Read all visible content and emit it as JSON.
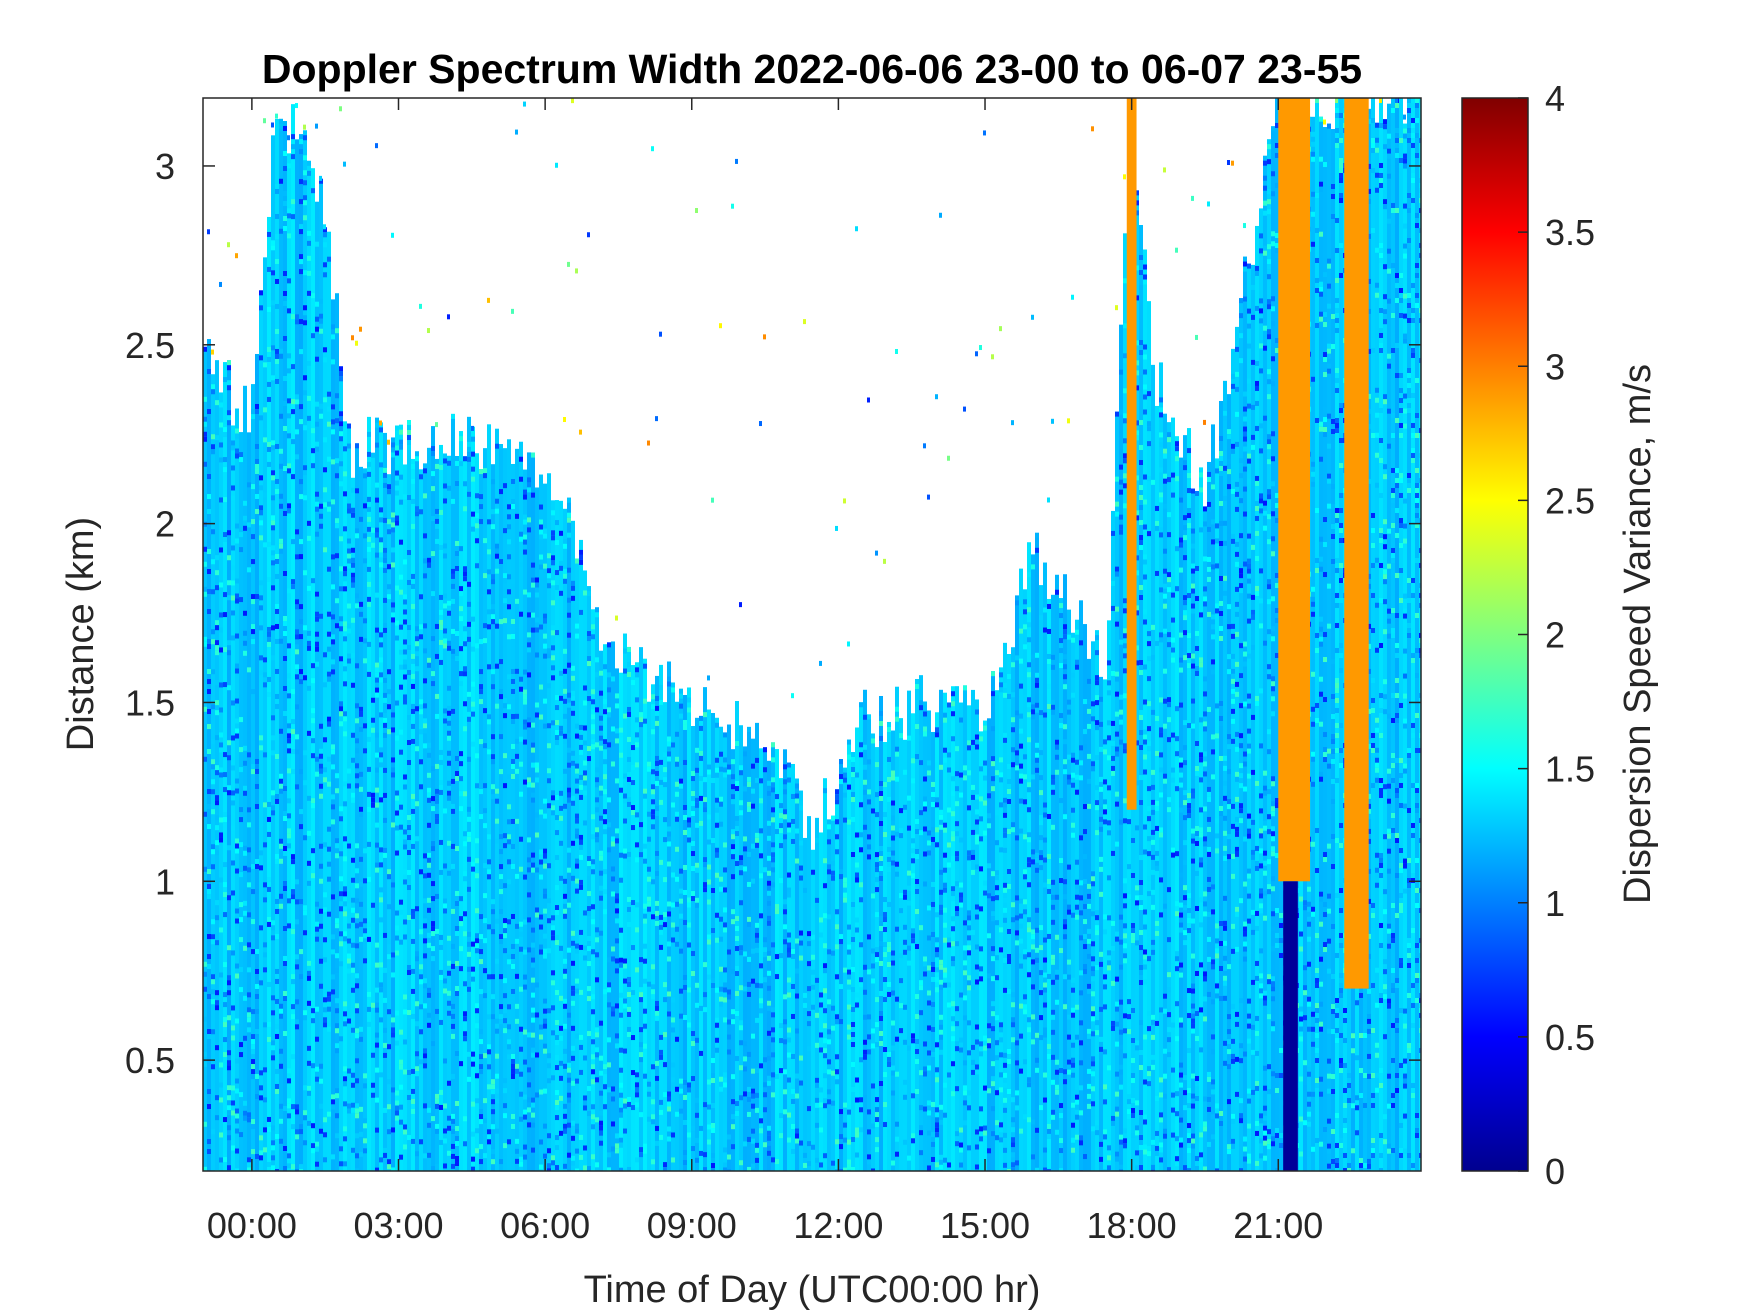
{
  "chart_data": {
    "type": "heatmap",
    "title": "Doppler Spectrum Width 2022-06-06 23-00 to 06-07 23-55",
    "xlabel": "Time of Day (UTC00:00 hr)",
    "ylabel": "Distance (km)",
    "colorbar_label": "Dispersion Speed Variance, m/s",
    "x_range_hours": [
      -1,
      23.92
    ],
    "x_ticks": [
      {
        "hour": 0,
        "label": "00:00"
      },
      {
        "hour": 3,
        "label": "03:00"
      },
      {
        "hour": 6,
        "label": "06:00"
      },
      {
        "hour": 9,
        "label": "09:00"
      },
      {
        "hour": 12,
        "label": "12:00"
      },
      {
        "hour": 15,
        "label": "15:00"
      },
      {
        "hour": 18,
        "label": "18:00"
      },
      {
        "hour": 21,
        "label": "21:00"
      }
    ],
    "ylim": [
      0.19,
      3.19
    ],
    "y_ticks": [
      {
        "value": 0.5,
        "label": "0.5"
      },
      {
        "value": 1,
        "label": "1"
      },
      {
        "value": 1.5,
        "label": "1.5"
      },
      {
        "value": 2,
        "label": "2"
      },
      {
        "value": 2.5,
        "label": "2.5"
      },
      {
        "value": 3,
        "label": "3"
      }
    ],
    "colorbar": {
      "range": [
        0,
        4
      ],
      "colormap": "jet",
      "ticks": [
        {
          "value": 0,
          "label": "0"
        },
        {
          "value": 0.5,
          "label": "0.5"
        },
        {
          "value": 1,
          "label": "1"
        },
        {
          "value": 1.5,
          "label": "1.5"
        },
        {
          "value": 2,
          "label": "2"
        },
        {
          "value": 2.5,
          "label": "2.5"
        },
        {
          "value": 3,
          "label": "3"
        },
        {
          "value": 3.5,
          "label": "3.5"
        },
        {
          "value": 4,
          "label": "4"
        }
      ]
    },
    "data_top_km_by_hour": [
      {
        "hour": -1.0,
        "top": 2.45
      },
      {
        "hour": 0.0,
        "top": 2.3
      },
      {
        "hour": 0.5,
        "top": 3.19
      },
      {
        "hour": 1.5,
        "top": 2.9
      },
      {
        "hour": 2.0,
        "top": 2.2
      },
      {
        "hour": 4.0,
        "top": 2.25
      },
      {
        "hour": 6.5,
        "top": 2.1
      },
      {
        "hour": 7.0,
        "top": 1.7
      },
      {
        "hour": 8.0,
        "top": 1.6
      },
      {
        "hour": 9.0,
        "top": 1.5
      },
      {
        "hour": 10.5,
        "top": 1.4
      },
      {
        "hour": 11.5,
        "top": 1.15
      },
      {
        "hour": 12.5,
        "top": 1.45
      },
      {
        "hour": 14.0,
        "top": 1.5
      },
      {
        "hour": 15.0,
        "top": 1.5
      },
      {
        "hour": 16.0,
        "top": 1.9
      },
      {
        "hour": 17.5,
        "top": 1.6
      },
      {
        "hour": 18.0,
        "top": 3.19
      },
      {
        "hour": 18.5,
        "top": 2.4
      },
      {
        "hour": 19.5,
        "top": 2.1
      },
      {
        "hour": 20.5,
        "top": 2.8
      },
      {
        "hour": 21.0,
        "top": 3.19
      },
      {
        "hour": 23.92,
        "top": 3.19
      }
    ],
    "dominant_value": 1.3,
    "features": [
      {
        "hour_start": 21.0,
        "hour_end": 21.65,
        "km_from": 1.0,
        "km_to": 3.19,
        "value": 2.9
      },
      {
        "hour_start": 22.35,
        "hour_end": 22.85,
        "km_from": 0.7,
        "km_to": 3.19,
        "value": 2.9
      },
      {
        "hour_start": 21.1,
        "hour_end": 21.4,
        "km_from": 0.19,
        "km_to": 1.0,
        "value": 0.1
      },
      {
        "hour_start": 17.9,
        "hour_end": 18.1,
        "km_from": 1.2,
        "km_to": 3.19,
        "value": 2.9
      }
    ]
  },
  "colors": {
    "background": "#ffffff",
    "axis": "#262626"
  }
}
